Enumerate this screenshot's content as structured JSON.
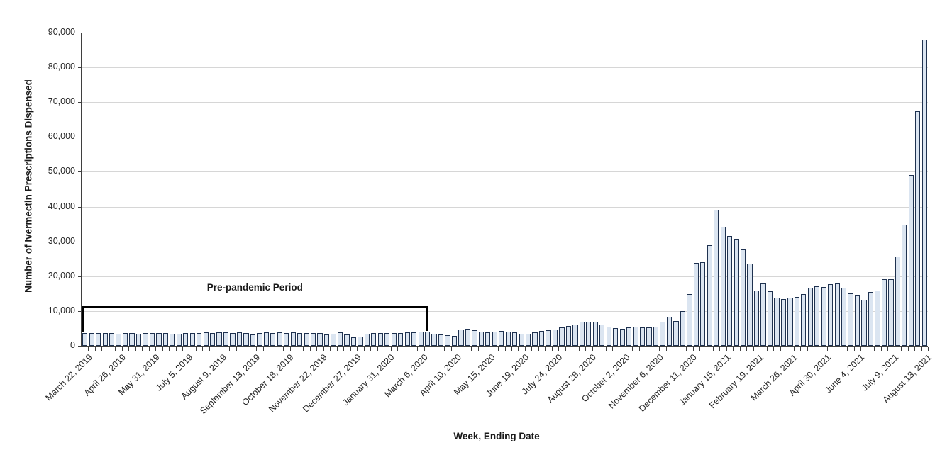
{
  "chart_data": {
    "type": "bar",
    "title": "",
    "xlabel": "Week, Ending Date",
    "ylabel": "Number of Ivermectin Prescriptions Dispensed",
    "ylim": [
      0,
      90000
    ],
    "y_tick_step": 10000,
    "y_tick_labels": [
      "0",
      "10,000",
      "20,000",
      "30,000",
      "40,000",
      "50,000",
      "60,000",
      "70,000",
      "80,000",
      "90,000"
    ],
    "grid": "horizontal-gridlines-on",
    "legend": "none",
    "x_label_every_n_bars": 5,
    "x_first_labeled_bar": 1,
    "x_tick_labels": [
      "March 22, 2019",
      "April 26, 2019",
      "May 31, 2019",
      "July 5, 2019",
      "August 9, 2019",
      "September 13, 2019",
      "October 18, 2019",
      "November 22, 2019",
      "December 27, 2019",
      "January 31, 2020",
      "March 6, 2020",
      "April 10, 2020",
      "May 15, 2020",
      "June 19, 2020",
      "July 24, 2020",
      "August 28, 2020",
      "October 2, 2020",
      "November 6, 2020",
      "December 11, 2020",
      "January 15, 2021",
      "February 19, 2021",
      "March 26, 2021",
      "April 30, 2021",
      "June 4, 2021",
      "July 9, 2021",
      "August 13, 2021"
    ],
    "values": [
      3600,
      3650,
      3600,
      3700,
      3600,
      3550,
      3600,
      3650,
      3550,
      3600,
      3700,
      3750,
      3650,
      3550,
      3500,
      3600,
      3700,
      3750,
      3800,
      3700,
      3850,
      3800,
      3750,
      3950,
      3600,
      3300,
      3700,
      3850,
      3750,
      3800,
      3750,
      3800,
      3750,
      3700,
      3750,
      3650,
      3250,
      3500,
      3850,
      3200,
      2450,
      2750,
      3400,
      3600,
      3650,
      3700,
      3600,
      3650,
      3800,
      3900,
      4000,
      4050,
      3550,
      3250,
      3050,
      2950,
      4600,
      4850,
      4400,
      4050,
      3950,
      4050,
      4200,
      4050,
      3950,
      3550,
      3400,
      3950,
      4200,
      4400,
      4750,
      5250,
      5750,
      6200,
      6850,
      6950,
      6850,
      6050,
      5550,
      5000,
      4850,
      5250,
      5400,
      5250,
      5250,
      5550,
      6850,
      8350,
      7050,
      10000,
      14850,
      23750,
      23950,
      28850,
      39000,
      34200,
      31550,
      30850,
      27750,
      23550,
      15950,
      17950,
      15750,
      13950,
      13450,
      13950,
      14100,
      14950,
      16750,
      17150,
      16950,
      17650,
      17850,
      16650,
      15150,
      14750,
      13300,
      15400,
      15900,
      19100,
      19100,
      25600,
      34900,
      49000,
      67500,
      88000
    ],
    "annotation": {
      "label": "Pre-pandemic Period",
      "covers_bars_from": 1,
      "covers_bars_to": 51,
      "bracket_y_value": 11400
    },
    "colors": {
      "bar_fill": "#dbe5f1",
      "bar_border": "#1f3250",
      "gridline": "#d6d6d6",
      "axis": "#3f3f3f",
      "text": "#1a1a1a"
    }
  }
}
